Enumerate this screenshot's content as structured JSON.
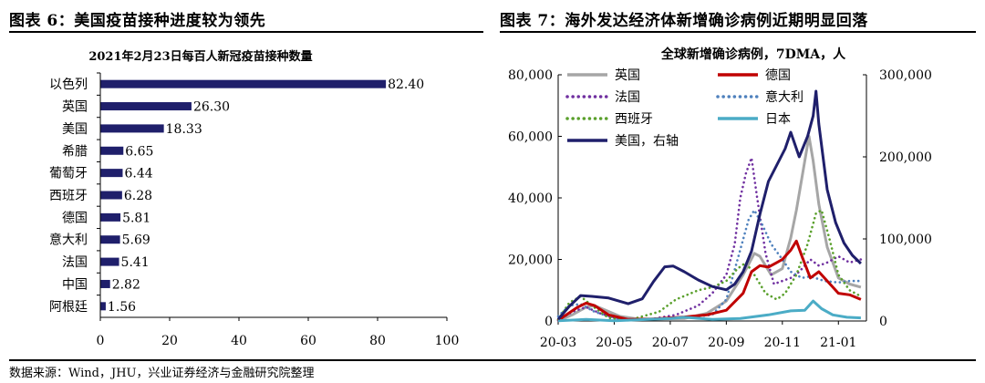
{
  "left_panel": {
    "heading": "图表 6：美国疫苗接种进度较为领先"
  },
  "right_panel": {
    "heading": "图表 7：海外发达经济体新增确诊病例近期明显回落"
  },
  "source_note": "数据来源：Wind，JHU，兴业证券经济与金融研究院整理",
  "chart_data": [
    {
      "type": "bar",
      "orientation": "horizontal",
      "title": "2021年2月23日每百人新冠疫苗接种数量",
      "categories": [
        "以色列",
        "英国",
        "美国",
        "希腊",
        "葡萄牙",
        "西班牙",
        "德国",
        "意大利",
        "法国",
        "中国",
        "阿根廷"
      ],
      "values": [
        82.4,
        26.3,
        18.33,
        6.65,
        6.44,
        6.28,
        5.81,
        5.69,
        5.41,
        2.82,
        1.56
      ],
      "value_labels": [
        "82.40",
        "26.30",
        "18.33",
        "6.65",
        "6.44",
        "6.28",
        "5.81",
        "5.69",
        "5.41",
        "2.82",
        "1.56"
      ],
      "xlim": [
        0,
        100
      ],
      "xticks": [
        "0",
        "20",
        "40",
        "60",
        "80",
        "100"
      ],
      "color": "#1f1f6b",
      "grid": false
    },
    {
      "type": "line",
      "title": "全球新增确诊病例，7DMA，人",
      "x_range": [
        "2020-03",
        "2021-02"
      ],
      "xticks": [
        "20-03",
        "20-05",
        "20-07",
        "20-09",
        "20-11",
        "21-01"
      ],
      "ylim_left": [
        0,
        80000
      ],
      "yticks_left": [
        "0",
        "20,000",
        "40,000",
        "60,000",
        "80,000"
      ],
      "ylim_right": [
        0,
        300000
      ],
      "yticks_right": [
        "0",
        "100,000",
        "200,000",
        "300,000"
      ],
      "legend_position": "top",
      "grid": false,
      "series": [
        {
          "name": "英国",
          "color": "#a6a6a6",
          "dash": "solid",
          "axis": "left",
          "points": [
            [
              0,
              100
            ],
            [
              0.5,
              2000
            ],
            [
              1,
              4500
            ],
            [
              1.3,
              5000
            ],
            [
              1.7,
              3500
            ],
            [
              2.2,
              1500
            ],
            [
              2.8,
              700
            ],
            [
              3.5,
              650
            ],
            [
              4.5,
              800
            ],
            [
              5.3,
              2500
            ],
            [
              6,
              6500
            ],
            [
              6.6,
              15000
            ],
            [
              7,
              22000
            ],
            [
              7.2,
              21000
            ],
            [
              7.6,
              15000
            ],
            [
              8,
              17000
            ],
            [
              8.3,
              27000
            ],
            [
              8.5,
              36000
            ],
            [
              8.8,
              52000
            ],
            [
              8.95,
              60000
            ],
            [
              9.1,
              52000
            ],
            [
              9.3,
              38000
            ],
            [
              9.6,
              24000
            ],
            [
              10,
              14000
            ],
            [
              10.4,
              12000
            ],
            [
              10.8,
              11000
            ]
          ]
        },
        {
          "name": "德国",
          "color": "#c00000",
          "dash": "solid",
          "axis": "left",
          "points": [
            [
              0,
              200
            ],
            [
              0.7,
              4500
            ],
            [
              1,
              5800
            ],
            [
              1.3,
              5000
            ],
            [
              1.8,
              2000
            ],
            [
              2.5,
              500
            ],
            [
              3.3,
              600
            ],
            [
              4.5,
              1300
            ],
            [
              5.3,
              2000
            ],
            [
              6,
              3500
            ],
            [
              6.6,
              9000
            ],
            [
              6.9,
              16000
            ],
            [
              7.2,
              18000
            ],
            [
              7.5,
              17500
            ],
            [
              7.8,
              19000
            ],
            [
              8,
              20000
            ],
            [
              8.3,
              23000
            ],
            [
              8.5,
              26000
            ],
            [
              8.7,
              21000
            ],
            [
              9,
              14000
            ],
            [
              9.3,
              16000
            ],
            [
              9.6,
              13000
            ],
            [
              10,
              9000
            ],
            [
              10.4,
              8500
            ],
            [
              10.8,
              7000
            ]
          ]
        },
        {
          "name": "法国",
          "color": "#7030a0",
          "dash": "dotted",
          "axis": "left",
          "points": [
            [
              0,
              200
            ],
            [
              0.5,
              3000
            ],
            [
              1,
              4500
            ],
            [
              1.5,
              2500
            ],
            [
              2.2,
              500
            ],
            [
              3.3,
              600
            ],
            [
              4.2,
              2000
            ],
            [
              5,
              5000
            ],
            [
              5.5,
              9000
            ],
            [
              6,
              15000
            ],
            [
              6.3,
              25000
            ],
            [
              6.5,
              40000
            ],
            [
              6.7,
              48000
            ],
            [
              6.9,
              53000
            ],
            [
              7.1,
              40000
            ],
            [
              7.4,
              22000
            ],
            [
              7.7,
              12000
            ],
            [
              8,
              13000
            ],
            [
              8.3,
              14000
            ],
            [
              8.6,
              16000
            ],
            [
              9,
              20000
            ],
            [
              9.3,
              18000
            ],
            [
              9.6,
              19000
            ],
            [
              10,
              21000
            ],
            [
              10.4,
              19000
            ],
            [
              10.8,
              20000
            ]
          ]
        },
        {
          "name": "意大利",
          "color": "#4f81bd",
          "dash": "dotted",
          "axis": "left",
          "points": [
            [
              0,
              1500
            ],
            [
              0.4,
              5000
            ],
            [
              0.8,
              5500
            ],
            [
              1.3,
              3000
            ],
            [
              1.8,
              1500
            ],
            [
              2.5,
              300
            ],
            [
              4.2,
              1000
            ],
            [
              5,
              1500
            ],
            [
              5.5,
              2000
            ],
            [
              6,
              7000
            ],
            [
              6.4,
              20000
            ],
            [
              6.8,
              33000
            ],
            [
              7,
              36000
            ],
            [
              7.3,
              31000
            ],
            [
              7.6,
              25000
            ],
            [
              8,
              20000
            ],
            [
              8.3,
              16000
            ],
            [
              8.7,
              14000
            ],
            [
              9,
              14500
            ],
            [
              9.5,
              13000
            ],
            [
              10,
              12500
            ],
            [
              10.4,
              13000
            ],
            [
              10.8,
              13000
            ]
          ]
        },
        {
          "name": "西班牙",
          "color": "#5aa02c",
          "dash": "dotted",
          "axis": "left",
          "points": [
            [
              0,
              500
            ],
            [
              0.4,
              6000
            ],
            [
              0.8,
              8000
            ],
            [
              1.2,
              5000
            ],
            [
              1.8,
              1000
            ],
            [
              2.5,
              200
            ],
            [
              3.6,
              3000
            ],
            [
              4.2,
              7000
            ],
            [
              5,
              10000
            ],
            [
              5.5,
              11000
            ],
            [
              6,
              13000
            ],
            [
              6.4,
              17000
            ],
            [
              6.7,
              19000
            ],
            [
              7,
              15000
            ],
            [
              7.4,
              9000
            ],
            [
              7.8,
              7000
            ],
            [
              8.1,
              9000
            ],
            [
              8.5,
              15000
            ],
            [
              8.9,
              25000
            ],
            [
              9.2,
              35000
            ],
            [
              9.4,
              36000
            ],
            [
              9.7,
              26000
            ],
            [
              10,
              15000
            ],
            [
              10.4,
              10000
            ],
            [
              10.8,
              8000
            ]
          ]
        },
        {
          "name": "日本",
          "color": "#4bacc6",
          "dash": "solid",
          "axis": "left",
          "points": [
            [
              0,
              50
            ],
            [
              1,
              500
            ],
            [
              2,
              100
            ],
            [
              4,
              800
            ],
            [
              4.5,
              1200
            ],
            [
              5.5,
              500
            ],
            [
              6.5,
              800
            ],
            [
              7.5,
              2000
            ],
            [
              8.3,
              3300
            ],
            [
              8.8,
              3500
            ],
            [
              9.1,
              6500
            ],
            [
              9.4,
              4000
            ],
            [
              9.8,
              2000
            ],
            [
              10.3,
              1200
            ],
            [
              10.8,
              1000
            ]
          ]
        },
        {
          "name": "美国，右轴",
          "color": "#1f1f6b",
          "dash": "solid",
          "axis": "right",
          "points": [
            [
              0,
              2000
            ],
            [
              0.4,
              18000
            ],
            [
              0.8,
              31000
            ],
            [
              1.2,
              30000
            ],
            [
              1.8,
              28000
            ],
            [
              2.5,
              21000
            ],
            [
              3,
              27000
            ],
            [
              3.4,
              48000
            ],
            [
              3.8,
              66000
            ],
            [
              4.1,
              67000
            ],
            [
              4.5,
              60000
            ],
            [
              5,
              50000
            ],
            [
              5.5,
              42000
            ],
            [
              6,
              38000
            ],
            [
              6.3,
              45000
            ],
            [
              6.6,
              60000
            ],
            [
              6.9,
              85000
            ],
            [
              7.2,
              130000
            ],
            [
              7.5,
              170000
            ],
            [
              7.8,
              190000
            ],
            [
              8.1,
              210000
            ],
            [
              8.3,
              230000
            ],
            [
              8.6,
              200000
            ],
            [
              8.9,
              225000
            ],
            [
              9.1,
              250000
            ],
            [
              9.2,
              280000
            ],
            [
              9.3,
              240000
            ],
            [
              9.6,
              160000
            ],
            [
              9.9,
              120000
            ],
            [
              10.2,
              95000
            ],
            [
              10.5,
              80000
            ],
            [
              10.8,
              70000
            ]
          ]
        }
      ]
    }
  ]
}
